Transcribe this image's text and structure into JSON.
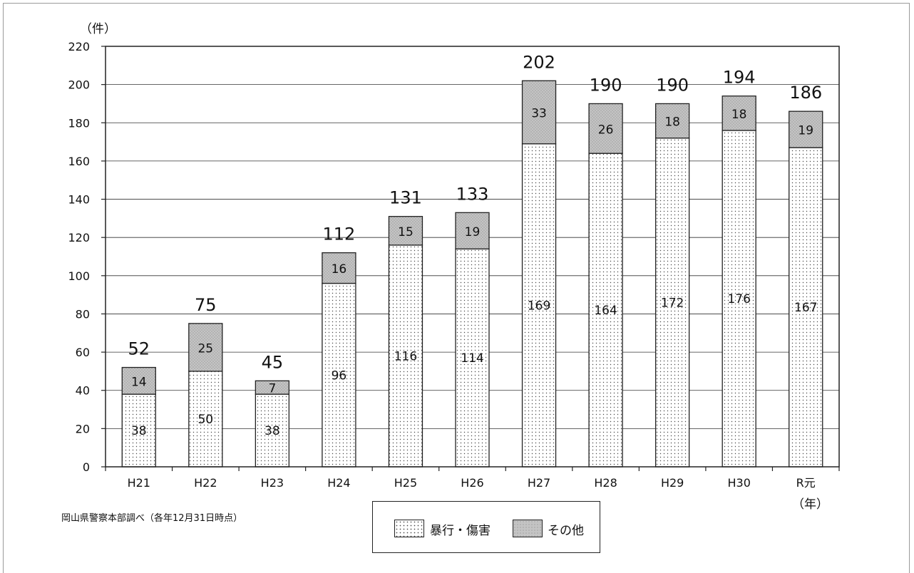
{
  "chart_data": {
    "type": "bar",
    "stacked": true,
    "unit_label": "（件）",
    "x_unit_label": "（年）",
    "categories": [
      "H21",
      "H22",
      "H23",
      "H24",
      "H25",
      "H26",
      "H27",
      "H28",
      "H29",
      "H30",
      "R元"
    ],
    "series": [
      {
        "name": "暴行・傷害",
        "values": [
          38,
          50,
          38,
          96,
          116,
          114,
          169,
          164,
          172,
          176,
          167
        ],
        "pattern": "fine-dot"
      },
      {
        "name": "その他",
        "values": [
          14,
          25,
          7,
          16,
          15,
          19,
          33,
          26,
          18,
          18,
          19
        ],
        "pattern": "dense-dot"
      }
    ],
    "totals": [
      52,
      75,
      45,
      112,
      131,
      133,
      202,
      190,
      190,
      194,
      186
    ],
    "ylim": [
      0,
      220
    ],
    "yticks": [
      0,
      20,
      40,
      60,
      80,
      100,
      120,
      140,
      160,
      180,
      200,
      220
    ],
    "grid": true,
    "legend_position": "bottom-center"
  },
  "source_note": "岡山県警察本部調べ（各年12月31日時点）",
  "colors": {
    "other_fill": "#c8c8c8",
    "main_fill": "#ffffff",
    "axis": "#222222",
    "dot": "#555555"
  }
}
